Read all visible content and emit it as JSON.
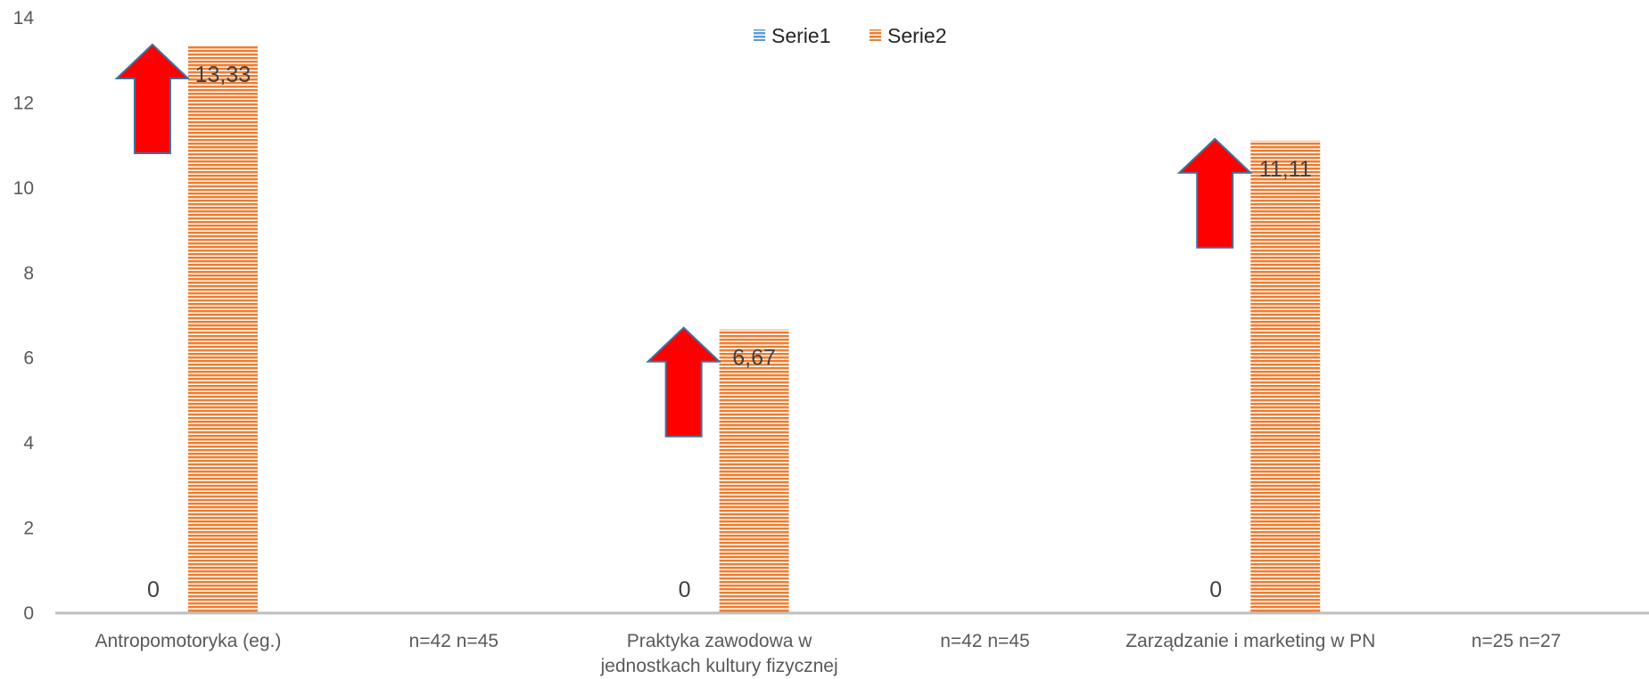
{
  "chart_data": {
    "type": "bar",
    "title": "",
    "xlabel": "",
    "ylabel": "",
    "ylim": [
      0,
      14
    ],
    "yticks": [
      "0",
      "2",
      "4",
      "6",
      "8",
      "10",
      "12",
      "14"
    ],
    "grid": false,
    "legend_position": "top-center",
    "categories": [
      [
        "Antropomotoryka (eg.)"
      ],
      [
        "n=42  n=45"
      ],
      [
        "Praktyka zawodowa w",
        "jednostkach kultury fizycznej"
      ],
      [
        "n=42 n=45"
      ],
      [
        "Zarządzanie i marketing w PN"
      ],
      [
        "n=25 n=27"
      ]
    ],
    "series": [
      {
        "name": "Serie1",
        "color": "#5b9bd5",
        "values": [
          0,
          null,
          0,
          null,
          0,
          null
        ],
        "data_labels": [
          "0",
          "",
          "0",
          "",
          "0",
          ""
        ]
      },
      {
        "name": "Serie2",
        "color": "#ed7d31",
        "values": [
          13.33,
          null,
          6.67,
          null,
          11.11,
          null
        ],
        "data_labels": [
          "13,33",
          "",
          "6,67",
          "",
          "11,11",
          ""
        ]
      }
    ],
    "annotations": [
      {
        "type": "up-arrow",
        "color": "#ff0000",
        "category_index": 0
      },
      {
        "type": "up-arrow",
        "color": "#ff0000",
        "category_index": 2
      },
      {
        "type": "up-arrow",
        "color": "#ff0000",
        "category_index": 4
      }
    ]
  }
}
